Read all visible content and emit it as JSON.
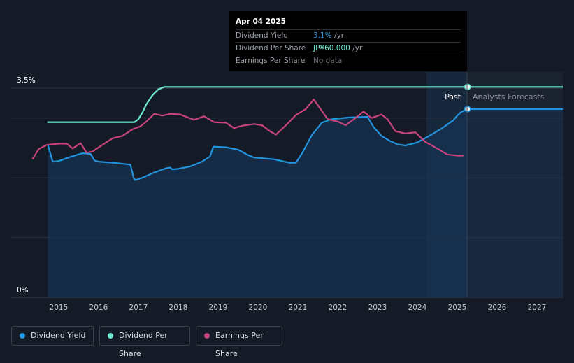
{
  "colors": {
    "dividend_yield": "#2394df",
    "dividend_per_share": "#6ee7cf",
    "earnings_per_share": "#c9437f",
    "axis_text": "#ffffff",
    "grid": "#2b3140",
    "area": "#173352"
  },
  "tooltip": {
    "date": "Apr 04 2025",
    "rows": [
      {
        "label": "Dividend Yield",
        "value": "3.1%",
        "suffix": " /yr",
        "color": "#2394df"
      },
      {
        "label": "Dividend Per Share",
        "value": "JP¥60.000",
        "suffix": " /yr",
        "color": "#6ee7cf"
      },
      {
        "label": "Earnings Per Share",
        "value": "No data",
        "suffix": "",
        "color": "#6b7078"
      }
    ]
  },
  "legend": [
    {
      "label": "Dividend Yield",
      "color": "#2394df"
    },
    {
      "label": "Dividend Per Share",
      "color": "#6ee7cf"
    },
    {
      "label": "Earnings Per Share",
      "color": "#c9437f"
    }
  ],
  "chart_data": {
    "type": "line",
    "x_tick_labels": [
      "2015",
      "2016",
      "2017",
      "2018",
      "2019",
      "2020",
      "2021",
      "2022",
      "2023",
      "2024",
      "2025",
      "2026",
      "2027"
    ],
    "y_tick_labels": [
      "3.5%",
      "0%"
    ],
    "ylim": [
      0,
      3.5
    ],
    "xlim": [
      2014.3,
      2027.65
    ],
    "past_label": "Past",
    "forecast_label": "Analysts Forecasts",
    "forecast_start": 2025.26,
    "grid": true,
    "series": [
      {
        "name": "Dividend Yield",
        "key": "dividend_yield",
        "units": "%",
        "area": true,
        "points": [
          [
            2014.73,
            2.55
          ],
          [
            2014.85,
            2.27
          ],
          [
            2015.0,
            2.28
          ],
          [
            2015.3,
            2.35
          ],
          [
            2015.6,
            2.41
          ],
          [
            2015.8,
            2.4
          ],
          [
            2015.9,
            2.29
          ],
          [
            2016.0,
            2.27
          ],
          [
            2016.4,
            2.25
          ],
          [
            2016.8,
            2.22
          ],
          [
            2016.88,
            2.0
          ],
          [
            2016.92,
            1.96
          ],
          [
            2017.1,
            2.0
          ],
          [
            2017.4,
            2.09
          ],
          [
            2017.7,
            2.16
          ],
          [
            2017.8,
            2.17
          ],
          [
            2017.85,
            2.14
          ],
          [
            2018.0,
            2.15
          ],
          [
            2018.3,
            2.19
          ],
          [
            2018.6,
            2.27
          ],
          [
            2018.8,
            2.36
          ],
          [
            2018.88,
            2.52
          ],
          [
            2019.2,
            2.51
          ],
          [
            2019.5,
            2.47
          ],
          [
            2019.75,
            2.38
          ],
          [
            2019.9,
            2.34
          ],
          [
            2020.4,
            2.31
          ],
          [
            2020.8,
            2.25
          ],
          [
            2020.95,
            2.25
          ],
          [
            2021.1,
            2.4
          ],
          [
            2021.35,
            2.71
          ],
          [
            2021.6,
            2.92
          ],
          [
            2021.85,
            2.98
          ],
          [
            2022.3,
            3.01
          ],
          [
            2022.75,
            3.02
          ],
          [
            2022.9,
            2.85
          ],
          [
            2023.1,
            2.7
          ],
          [
            2023.3,
            2.62
          ],
          [
            2023.5,
            2.56
          ],
          [
            2023.7,
            2.54
          ],
          [
            2024.0,
            2.59
          ],
          [
            2024.3,
            2.7
          ],
          [
            2024.6,
            2.82
          ],
          [
            2024.9,
            2.96
          ],
          [
            2025.0,
            3.04
          ],
          [
            2025.1,
            3.1
          ],
          [
            2025.26,
            3.15
          ]
        ],
        "forecast_points": [
          [
            2025.26,
            3.15
          ],
          [
            2027.65,
            3.15
          ]
        ]
      },
      {
        "name": "Dividend Per Share",
        "key": "dividend_per_share",
        "units": "JP¥",
        "area": false,
        "points": [
          [
            2014.73,
            2.93
          ],
          [
            2016.9,
            2.93
          ],
          [
            2017.0,
            2.98
          ],
          [
            2017.1,
            3.09
          ],
          [
            2017.2,
            3.23
          ],
          [
            2017.35,
            3.38
          ],
          [
            2017.5,
            3.48
          ],
          [
            2017.65,
            3.52
          ],
          [
            2017.75,
            3.52
          ],
          [
            2025.26,
            3.52
          ]
        ],
        "forecast_points": [
          [
            2025.26,
            3.52
          ],
          [
            2027.65,
            3.52
          ]
        ]
      },
      {
        "name": "Earnings Per Share",
        "key": "earnings_per_share",
        "units": "JP¥",
        "area": false,
        "points": [
          [
            2014.35,
            2.32
          ],
          [
            2014.5,
            2.48
          ],
          [
            2014.7,
            2.55
          ],
          [
            2015.0,
            2.57
          ],
          [
            2015.2,
            2.57
          ],
          [
            2015.35,
            2.49
          ],
          [
            2015.55,
            2.58
          ],
          [
            2015.7,
            2.42
          ],
          [
            2015.85,
            2.44
          ],
          [
            2016.05,
            2.53
          ],
          [
            2016.35,
            2.66
          ],
          [
            2016.6,
            2.7
          ],
          [
            2016.85,
            2.81
          ],
          [
            2017.05,
            2.86
          ],
          [
            2017.2,
            2.94
          ],
          [
            2017.4,
            3.07
          ],
          [
            2017.6,
            3.04
          ],
          [
            2017.8,
            3.07
          ],
          [
            2018.05,
            3.06
          ],
          [
            2018.2,
            3.02
          ],
          [
            2018.4,
            2.97
          ],
          [
            2018.65,
            3.03
          ],
          [
            2018.9,
            2.93
          ],
          [
            2019.2,
            2.92
          ],
          [
            2019.4,
            2.83
          ],
          [
            2019.6,
            2.87
          ],
          [
            2019.9,
            2.9
          ],
          [
            2020.1,
            2.88
          ],
          [
            2020.3,
            2.78
          ],
          [
            2020.45,
            2.72
          ],
          [
            2020.75,
            2.91
          ],
          [
            2020.95,
            3.05
          ],
          [
            2021.2,
            3.15
          ],
          [
            2021.4,
            3.31
          ],
          [
            2021.55,
            3.17
          ],
          [
            2021.75,
            2.98
          ],
          [
            2022.0,
            2.94
          ],
          [
            2022.2,
            2.88
          ],
          [
            2022.45,
            3.0
          ],
          [
            2022.65,
            3.11
          ],
          [
            2022.85,
            3.0
          ],
          [
            2023.1,
            3.06
          ],
          [
            2023.25,
            2.98
          ],
          [
            2023.45,
            2.78
          ],
          [
            2023.7,
            2.74
          ],
          [
            2023.95,
            2.76
          ],
          [
            2024.2,
            2.6
          ],
          [
            2024.5,
            2.49
          ],
          [
            2024.75,
            2.39
          ],
          [
            2025.0,
            2.37
          ],
          [
            2025.15,
            2.37
          ]
        ],
        "forecast_points": []
      }
    ]
  }
}
